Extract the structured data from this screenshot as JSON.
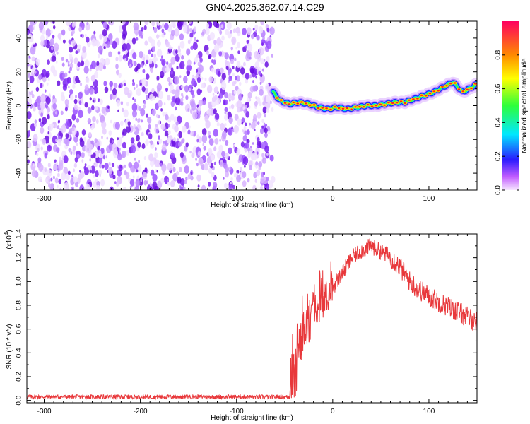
{
  "title": "GN04.2025.362.07.14.C29",
  "chart_data": [
    {
      "type": "heatmap",
      "name": "spectrogram",
      "xlabel": "Height of straight line (km)",
      "ylabel": "Frequency (Hz)",
      "xlim": [
        -318,
        150
      ],
      "ylim": [
        -50,
        50
      ],
      "xticks": [
        -300,
        -200,
        -100,
        0,
        100
      ],
      "yticks": [
        -40,
        -20,
        0,
        20,
        40
      ],
      "noise_region_x": [
        -318,
        -62
      ],
      "ridge": {
        "x": [
          -62,
          -55,
          -45,
          -35,
          -25,
          -15,
          -5,
          5,
          15,
          25,
          35,
          45,
          55,
          65,
          75,
          85,
          95,
          105,
          115,
          125,
          135,
          145,
          150
        ],
        "y": [
          8,
          3,
          1,
          2,
          1,
          -1,
          -2,
          -1,
          -2,
          -1,
          0,
          0,
          1,
          2,
          2,
          4,
          6,
          8,
          11,
          14,
          8,
          11,
          13
        ]
      },
      "colorbar": {
        "label": "Normalized spectral amplitude",
        "range": [
          0,
          1
        ],
        "ticks": [
          0.0,
          0.2,
          0.4,
          0.6,
          0.8
        ]
      }
    },
    {
      "type": "line",
      "name": "snr",
      "xlabel": "Height of straight line (km)",
      "ylabel": "SNR (10 * v/v)",
      "yscale_label": "(x10",
      "yscale_exp": "4",
      "xlim": [
        -318,
        150
      ],
      "ylim": [
        -0.02,
        1.4
      ],
      "xticks": [
        -300,
        -200,
        -100,
        0,
        100
      ],
      "yticks": [
        0.0,
        0.2,
        0.4,
        0.6,
        0.8,
        1.0,
        1.2,
        1.4
      ],
      "series": [
        {
          "name": "SNR",
          "color": "#e8383b",
          "x": [
            -318,
            -200,
            -100,
            -45,
            -40,
            -35,
            -30,
            -20,
            -10,
            0,
            10,
            20,
            30,
            40,
            50,
            60,
            70,
            80,
            90,
            100,
            110,
            120,
            130,
            140,
            150
          ],
          "y": [
            0.03,
            0.03,
            0.03,
            0.03,
            0.12,
            0.38,
            0.55,
            0.72,
            0.82,
            0.95,
            1.07,
            1.2,
            1.26,
            1.3,
            1.25,
            1.21,
            1.12,
            1.0,
            0.93,
            0.88,
            0.83,
            0.79,
            0.75,
            0.7,
            0.66
          ]
        }
      ]
    }
  ]
}
